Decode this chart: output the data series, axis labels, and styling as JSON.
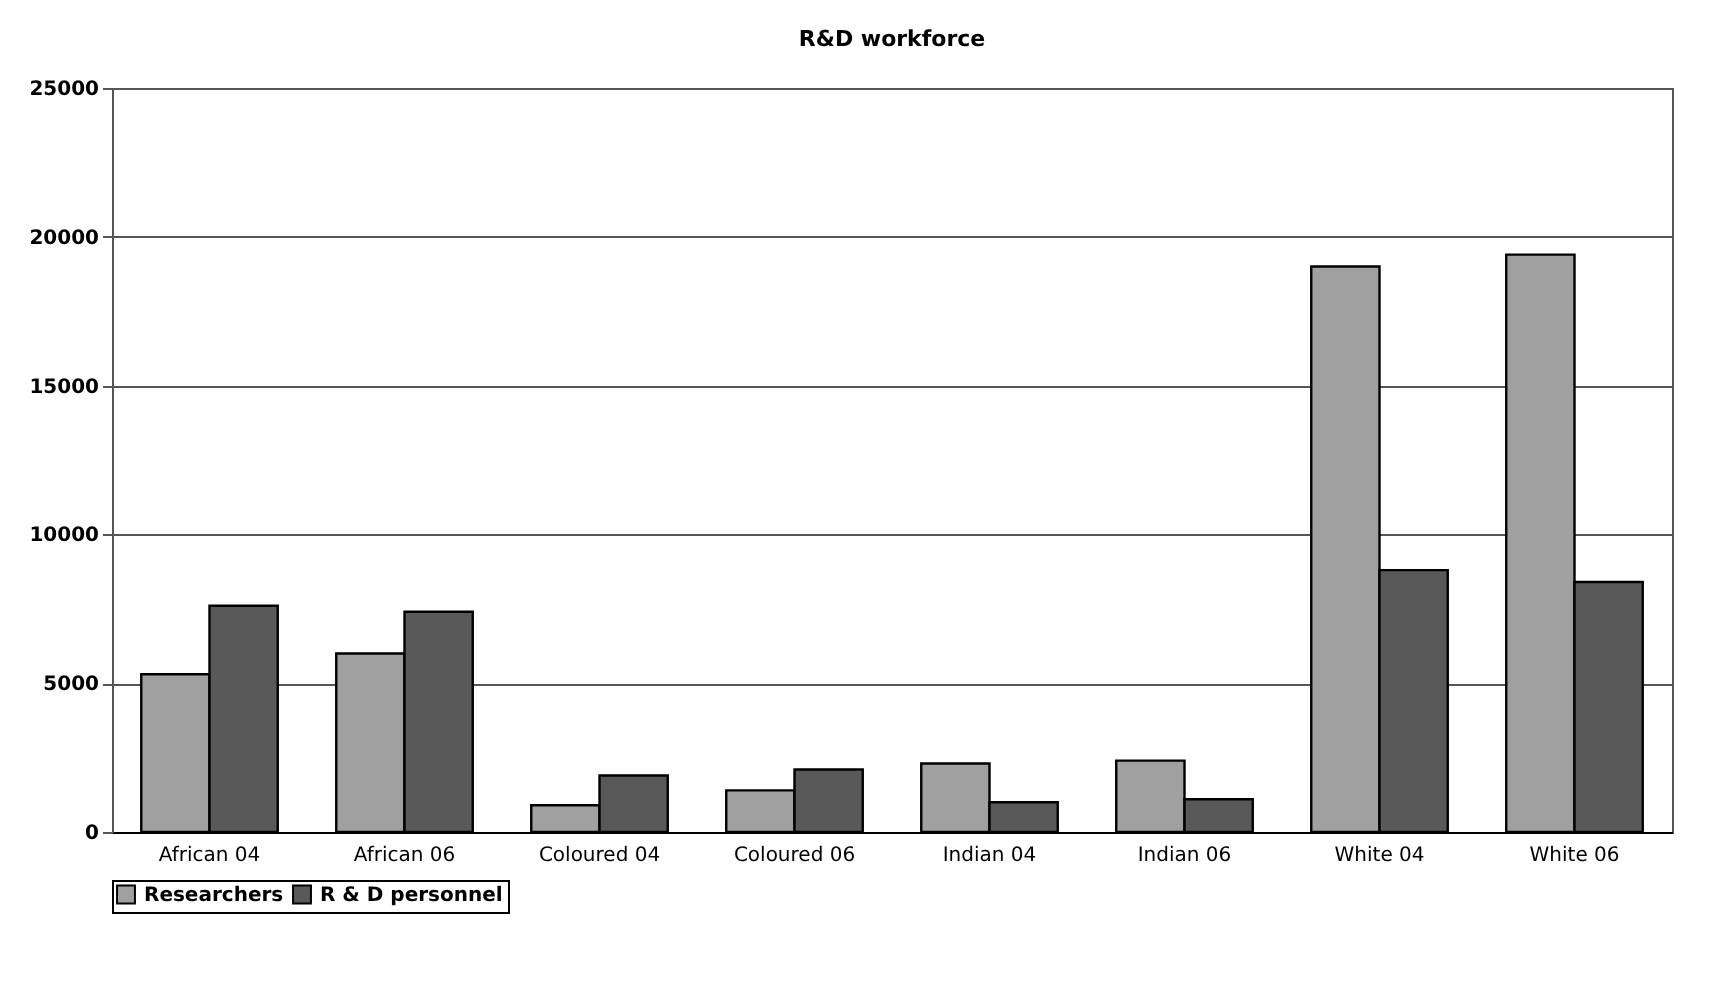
{
  "chart_data": {
    "type": "bar",
    "title": "R&D workforce",
    "categories": [
      "African 04",
      "African 06",
      "Coloured 04",
      "Coloured 06",
      "Indian 04",
      "Indian 06",
      "White 04",
      "White 06"
    ],
    "series": [
      {
        "name": "Researchers",
        "color": "#a0a0a0",
        "values": [
          5300,
          6000,
          900,
          1400,
          2300,
          2400,
          19000,
          19400
        ]
      },
      {
        "name": "R & D personnel",
        "color": "#595959",
        "values": [
          7600,
          7400,
          1900,
          2100,
          1000,
          1100,
          8800,
          8400
        ]
      }
    ],
    "ylim": [
      0,
      25000
    ],
    "yticks": [
      0,
      5000,
      10000,
      15000,
      20000,
      25000
    ],
    "grid": "y",
    "legend": "bottom"
  }
}
